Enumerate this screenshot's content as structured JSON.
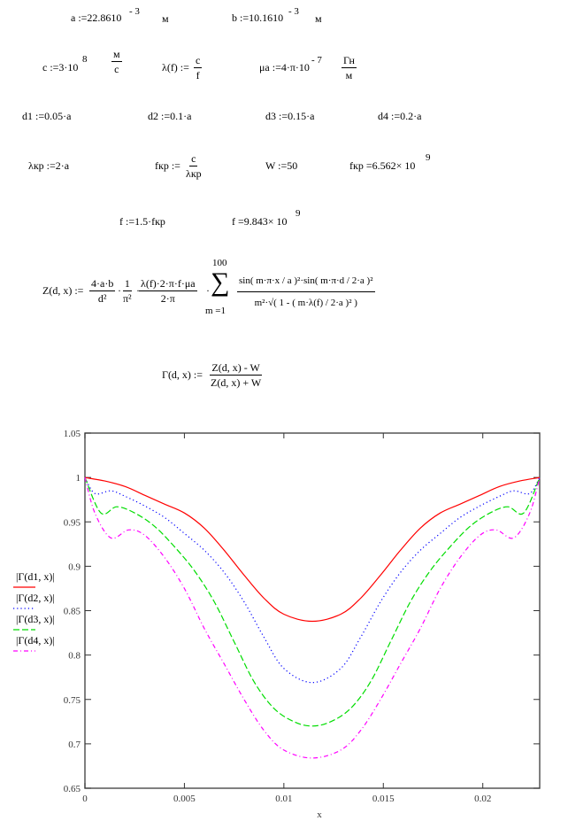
{
  "worksheet": {
    "a_def": "a :=22.8610",
    "a_exp": "- 3",
    "a_unit": "м",
    "b_def": "b :=10.1610",
    "b_exp": "- 3",
    "b_unit": "м",
    "c_def": "c :=3·10",
    "c_exp": "8",
    "c_unit_num": "м",
    "c_unit_den": "с",
    "lambda_def": "λ(f) :=",
    "lambda_num": "c",
    "lambda_den": "f",
    "mu_def": "μa :=4·π·10",
    "mu_exp": "- 7",
    "mu_unit_num": "Гн",
    "mu_unit_den": "м",
    "d1": "d1 :=0.05·a",
    "d2": "d2 :=0.1·a",
    "d3": "d3 :=0.15·a",
    "d4": "d4 :=0.2·a",
    "lkr_def": "λкр :=2·a",
    "fkr_def": "fкр :=",
    "fkr_num": "c",
    "fkr_den": "λкр",
    "w_def": "W :=50",
    "fkr_result": "fкр =6.562× 10",
    "fkr_result_exp": "9",
    "f_def": "f :=1.5·fкр",
    "f_result": "f =9.843× 10",
    "f_result_exp": "9",
    "z_lhs": "Z(d, x) :=",
    "z_f1_num": "4·a·b",
    "z_f1_den": "d²",
    "z_dot1": "·",
    "z_f2_num": "1",
    "z_f2_den": "π²",
    "z_dot2": "·",
    "z_f3_num": "λ(f)·2·π·f·μa",
    "z_f3_den": "2·π",
    "z_dot3": "·",
    "z_sum_symbol": "∑",
    "z_sum_upper": "100",
    "z_sum_lower": "m =1",
    "z_big_num": "sin( m·π·x / a )²·sin( m·π·d / 2·a )²",
    "z_big_den": "m²·√( 1 - ( m·λ(f) / 2·a )² )",
    "gamma_lhs": "Γ(d, x) :=",
    "gamma_num": "Z(d, x) -  W",
    "gamma_den": "Z(d, x) + W"
  },
  "chart_data": {
    "type": "line",
    "xlabel": "x",
    "ylabel": "",
    "xlim": [
      0,
      0.02286
    ],
    "ylim": [
      0.65,
      1.05
    ],
    "xticks": [
      "0",
      "0.005",
      "0.01",
      "0.015",
      "0.02"
    ],
    "yticks": [
      "0.65",
      "0.7",
      "0.75",
      "0.8",
      "0.85",
      "0.9",
      "0.95",
      "1",
      "1.05"
    ],
    "grid": false,
    "legend": "left",
    "series": [
      {
        "name": "|Γ(d1, x)|",
        "color": "#ff0000",
        "style": "solid",
        "points": [
          [
            0,
            1.0
          ],
          [
            0.001,
            0.996
          ],
          [
            0.002,
            0.99
          ],
          [
            0.003,
            0.98
          ],
          [
            0.004,
            0.97
          ],
          [
            0.005,
            0.96
          ],
          [
            0.006,
            0.943
          ],
          [
            0.007,
            0.918
          ],
          [
            0.008,
            0.89
          ],
          [
            0.009,
            0.864
          ],
          [
            0.01,
            0.846
          ],
          [
            0.01143,
            0.838
          ],
          [
            0.01286,
            0.846
          ],
          [
            0.01386,
            0.864
          ],
          [
            0.01486,
            0.89
          ],
          [
            0.01586,
            0.918
          ],
          [
            0.01686,
            0.943
          ],
          [
            0.01786,
            0.96
          ],
          [
            0.01886,
            0.97
          ],
          [
            0.01986,
            0.98
          ],
          [
            0.02086,
            0.99
          ],
          [
            0.02186,
            0.996
          ],
          [
            0.02286,
            1.0
          ]
        ]
      },
      {
        "name": "|Γ(d2, x)|",
        "color": "#0000ff",
        "style": "dotted",
        "points": [
          [
            0,
            1.0
          ],
          [
            0.0005,
            0.982
          ],
          [
            0.0013,
            0.985
          ],
          [
            0.002,
            0.979
          ],
          [
            0.003,
            0.968
          ],
          [
            0.004,
            0.955
          ],
          [
            0.005,
            0.937
          ],
          [
            0.006,
            0.918
          ],
          [
            0.007,
            0.893
          ],
          [
            0.008,
            0.86
          ],
          [
            0.009,
            0.82
          ],
          [
            0.01,
            0.785
          ],
          [
            0.01143,
            0.769
          ],
          [
            0.01286,
            0.785
          ],
          [
            0.01386,
            0.82
          ],
          [
            0.01486,
            0.86
          ],
          [
            0.01586,
            0.893
          ],
          [
            0.01686,
            0.918
          ],
          [
            0.01786,
            0.937
          ],
          [
            0.01886,
            0.955
          ],
          [
            0.01986,
            0.968
          ],
          [
            0.02086,
            0.979
          ],
          [
            0.02156,
            0.985
          ],
          [
            0.02236,
            0.982
          ],
          [
            0.02286,
            1.0
          ]
        ]
      },
      {
        "name": "|Γ(d3, x)|",
        "color": "#00dd00",
        "style": "dashed",
        "points": [
          [
            0,
            1.0
          ],
          [
            0.0008,
            0.96
          ],
          [
            0.0016,
            0.967
          ],
          [
            0.0025,
            0.96
          ],
          [
            0.0035,
            0.945
          ],
          [
            0.0045,
            0.922
          ],
          [
            0.0055,
            0.895
          ],
          [
            0.0065,
            0.86
          ],
          [
            0.0075,
            0.815
          ],
          [
            0.0085,
            0.77
          ],
          [
            0.0095,
            0.74
          ],
          [
            0.0105,
            0.725
          ],
          [
            0.01143,
            0.72
          ],
          [
            0.01236,
            0.725
          ],
          [
            0.01336,
            0.74
          ],
          [
            0.01436,
            0.77
          ],
          [
            0.01536,
            0.815
          ],
          [
            0.01636,
            0.86
          ],
          [
            0.01736,
            0.895
          ],
          [
            0.01836,
            0.922
          ],
          [
            0.01936,
            0.945
          ],
          [
            0.02036,
            0.96
          ],
          [
            0.02126,
            0.967
          ],
          [
            0.02206,
            0.96
          ],
          [
            0.02286,
            1.0
          ]
        ]
      },
      {
        "name": "|Γ(d4, x)|",
        "color": "#ff00ff",
        "style": "dash-dot",
        "points": [
          [
            0,
            1.0
          ],
          [
            0.0005,
            0.96
          ],
          [
            0.0013,
            0.932
          ],
          [
            0.0022,
            0.941
          ],
          [
            0.003,
            0.935
          ],
          [
            0.004,
            0.91
          ],
          [
            0.005,
            0.875
          ],
          [
            0.006,
            0.83
          ],
          [
            0.007,
            0.79
          ],
          [
            0.008,
            0.75
          ],
          [
            0.009,
            0.715
          ],
          [
            0.01,
            0.693
          ],
          [
            0.01143,
            0.684
          ],
          [
            0.01286,
            0.693
          ],
          [
            0.01386,
            0.715
          ],
          [
            0.01486,
            0.75
          ],
          [
            0.01586,
            0.79
          ],
          [
            0.01686,
            0.83
          ],
          [
            0.01786,
            0.875
          ],
          [
            0.01886,
            0.91
          ],
          [
            0.01986,
            0.935
          ],
          [
            0.02066,
            0.941
          ],
          [
            0.02156,
            0.932
          ],
          [
            0.02236,
            0.96
          ],
          [
            0.02286,
            1.0
          ]
        ]
      }
    ]
  }
}
